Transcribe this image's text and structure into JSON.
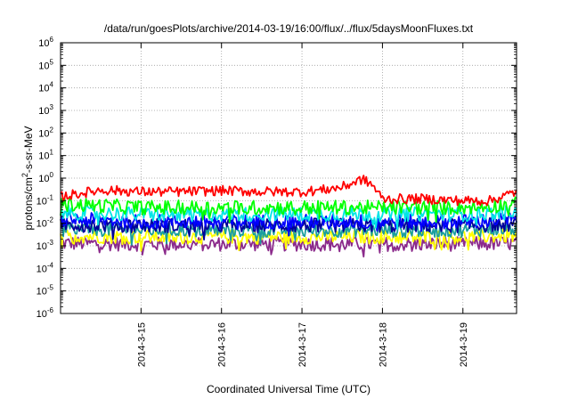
{
  "chart_data": {
    "type": "line",
    "title": "/data/run/goesPlots/archive/2014-03-19/16:00/flux/../flux/5daysMoonFluxes.txt",
    "xlabel": "Coordinated Universal Time (UTC)",
    "ylabel": "protons/cm2-s-sr-MeV",
    "yscale": "log",
    "ylim": [
      1e-06,
      1000000.0
    ],
    "y_ticks": [
      -6,
      -5,
      -4,
      -3,
      -2,
      -1,
      0,
      1,
      2,
      3,
      4,
      5,
      6
    ],
    "xlim": [
      "2014-03-14 00:00",
      "2014-03-19 16:00"
    ],
    "x_ticks": [
      "2014-3-15",
      "2014-3-16",
      "2014-3-17",
      "2014-3-18",
      "2014-3-19"
    ],
    "grid": true,
    "series": [
      {
        "color": "#ff0000",
        "x": [
          "2014-03-14 00:00",
          "2014-03-14 12:00",
          "2014-03-15 00:00",
          "2014-03-15 12:00",
          "2014-03-16 00:00",
          "2014-03-16 12:00",
          "2014-03-17 00:00",
          "2014-03-17 06:00",
          "2014-03-17 12:00",
          "2014-03-17 18:00",
          "2014-03-17 21:00",
          "2014-03-18 00:00",
          "2014-03-18 12:00",
          "2014-03-19 00:00",
          "2014-03-19 08:00",
          "2014-03-19 16:00"
        ],
        "values": [
          0.15,
          0.3,
          0.25,
          0.25,
          0.28,
          0.25,
          0.25,
          0.3,
          0.4,
          0.9,
          0.5,
          0.12,
          0.12,
          0.1,
          0.1,
          0.25
        ]
      },
      {
        "color": "#00ff00",
        "x": [
          "2014-03-14 00:00",
          "2014-03-14 12:00",
          "2014-03-15 00:00",
          "2014-03-15 12:00",
          "2014-03-16 00:00",
          "2014-03-16 12:00",
          "2014-03-17 00:00",
          "2014-03-17 12:00",
          "2014-03-18 00:00",
          "2014-03-18 12:00",
          "2014-03-19 00:00",
          "2014-03-19 16:00"
        ],
        "values": [
          0.07,
          0.06,
          0.05,
          0.05,
          0.05,
          0.05,
          0.05,
          0.05,
          0.05,
          0.05,
          0.05,
          0.07
        ]
      },
      {
        "color": "#00e6e6",
        "x": [
          "2014-03-14 00:00",
          "2014-03-15 00:00",
          "2014-03-16 00:00",
          "2014-03-17 00:00",
          "2014-03-18 00:00",
          "2014-03-19 00:00",
          "2014-03-19 16:00"
        ],
        "values": [
          0.03,
          0.025,
          0.025,
          0.025,
          0.025,
          0.025,
          0.03
        ]
      },
      {
        "color": "#0000ff",
        "x": [
          "2014-03-14 00:00",
          "2014-03-15 00:00",
          "2014-03-16 00:00",
          "2014-03-17 00:00",
          "2014-03-18 00:00",
          "2014-03-19 00:00",
          "2014-03-19 16:00"
        ],
        "values": [
          0.015,
          0.012,
          0.012,
          0.012,
          0.012,
          0.012,
          0.015
        ]
      },
      {
        "color": "#000099",
        "x": [
          "2014-03-14 00:00",
          "2014-03-15 00:00",
          "2014-03-16 00:00",
          "2014-03-17 00:00",
          "2014-03-18 00:00",
          "2014-03-19 00:00",
          "2014-03-19 16:00"
        ],
        "values": [
          0.009,
          0.008,
          0.008,
          0.008,
          0.008,
          0.008,
          0.009
        ]
      },
      {
        "color": "#1a9e9e",
        "x": [
          "2014-03-14 00:00",
          "2014-03-15 00:00",
          "2014-03-16 00:00",
          "2014-03-17 00:00",
          "2014-03-18 00:00",
          "2014-03-19 00:00",
          "2014-03-19 16:00"
        ],
        "values": [
          0.006,
          0.005,
          0.005,
          0.005,
          0.005,
          0.005,
          0.006
        ]
      },
      {
        "color": "#ffff00",
        "x": [
          "2014-03-14 00:00",
          "2014-03-15 00:00",
          "2014-03-16 00:00",
          "2014-03-17 00:00",
          "2014-03-18 00:00",
          "2014-03-19 00:00",
          "2014-03-19 16:00"
        ],
        "values": [
          0.0028,
          0.0025,
          0.0025,
          0.0025,
          0.0025,
          0.0025,
          0.0028
        ]
      },
      {
        "color": "#8b2a8b",
        "x": [
          "2014-03-14 00:00",
          "2014-03-15 00:00",
          "2014-03-16 00:00",
          "2014-03-17 00:00",
          "2014-03-18 00:00",
          "2014-03-19 00:00",
          "2014-03-19 16:00"
        ],
        "values": [
          0.0013,
          0.0012,
          0.0012,
          0.0012,
          0.0012,
          0.0012,
          0.0013
        ]
      }
    ]
  }
}
